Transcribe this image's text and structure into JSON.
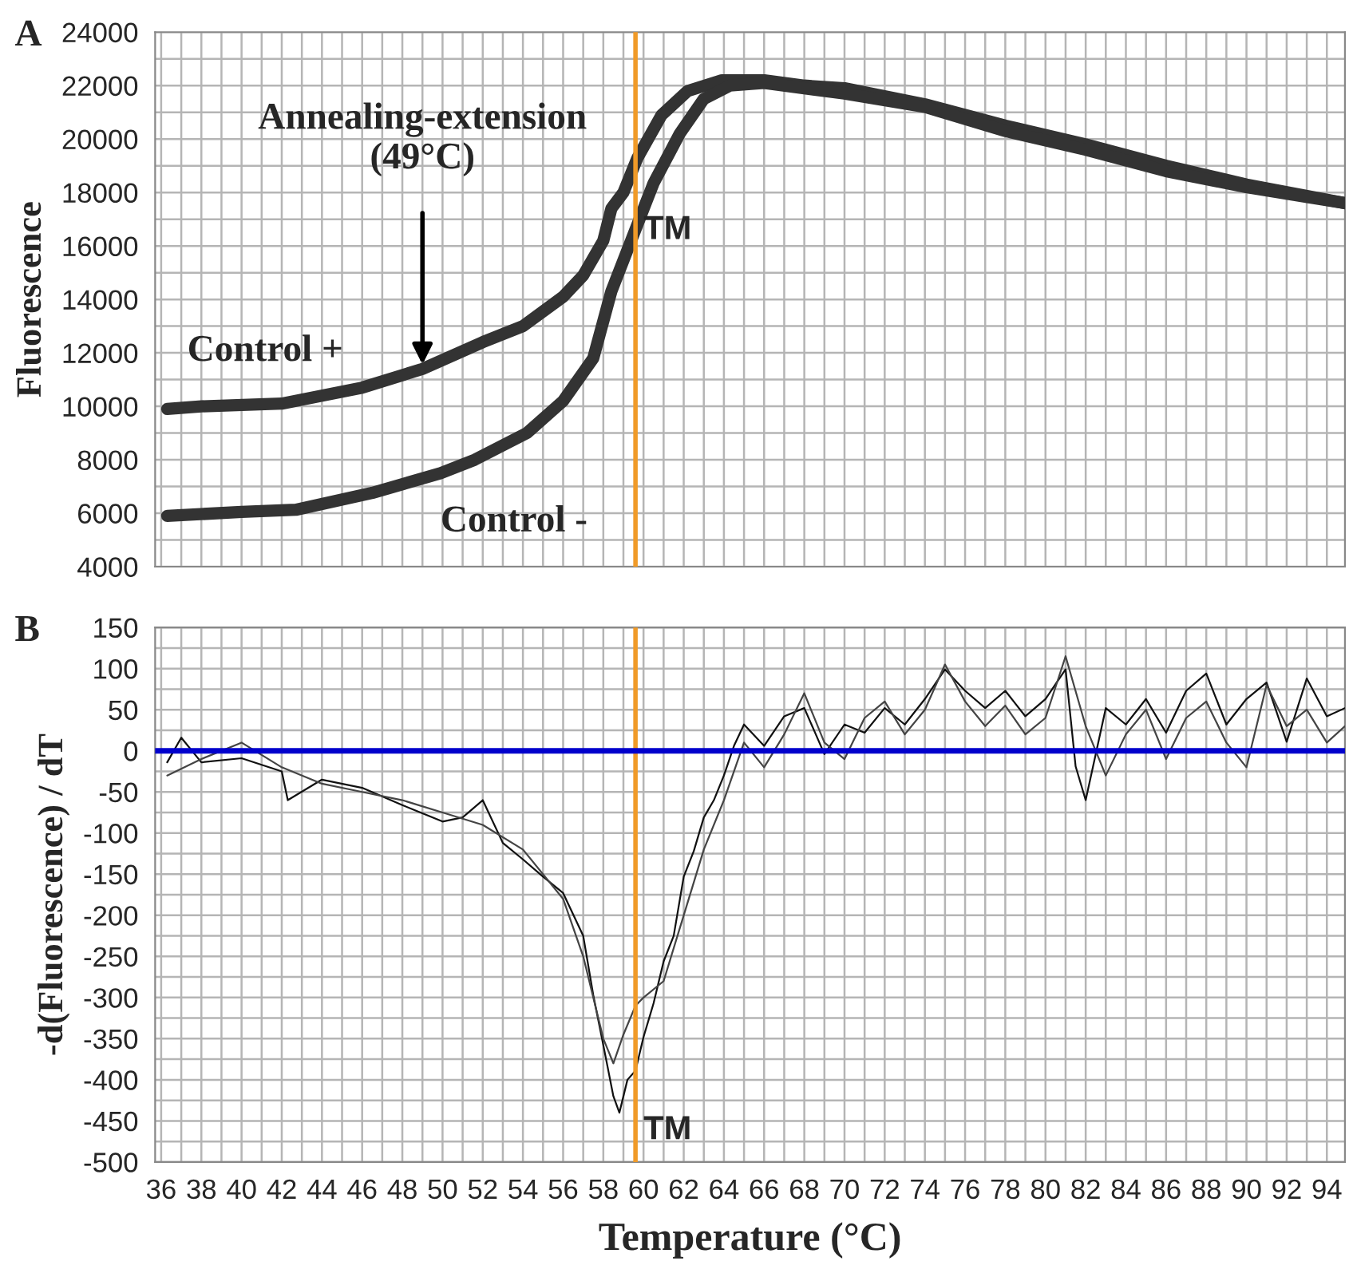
{
  "chart_data": [
    {
      "type": "line",
      "title": "A",
      "ylabel": "Fluorescence",
      "xlim": [
        35.7,
        94.9
      ],
      "xticks": [
        36,
        38,
        40,
        42,
        44,
        46,
        48,
        50,
        52,
        54,
        56,
        58,
        60,
        62,
        64,
        66,
        68,
        70,
        72,
        74,
        76,
        78,
        80,
        82,
        84,
        86,
        88,
        90,
        92,
        94
      ],
      "ylim": [
        4000,
        24000
      ],
      "yticks": [
        4000,
        6000,
        8000,
        10000,
        12000,
        14000,
        16000,
        18000,
        20000,
        22000,
        24000
      ],
      "tick_labels": "y",
      "grid": true,
      "legend": false,
      "series": [
        {
          "name": "Control +",
          "color": "#333333",
          "x": [
            36.3,
            38,
            42,
            46,
            49,
            52,
            54,
            56,
            57,
            58,
            58.4,
            59,
            59.7,
            60.9,
            62.2,
            63.9,
            66,
            68,
            70,
            74,
            78,
            82,
            86,
            90,
            94.9
          ],
          "values": [
            9900,
            10000,
            10100,
            10700,
            11400,
            12400,
            13000,
            14100,
            14900,
            16200,
            17400,
            18000,
            19300,
            20900,
            21800,
            22200,
            22200,
            22000,
            21900,
            21300,
            20500,
            19800,
            19000,
            18300,
            17600
          ]
        },
        {
          "name": "Control -",
          "color": "#333333",
          "x": [
            36.3,
            40,
            42.7,
            46.5,
            49.9,
            51.6,
            54.2,
            56,
            57.5,
            58.4,
            59.2,
            60.5,
            61.8,
            63,
            64.3,
            66,
            70,
            74,
            78,
            82,
            86,
            90,
            94.9
          ],
          "values": [
            5900,
            6050,
            6130,
            6760,
            7500,
            8000,
            9000,
            10200,
            11800,
            14300,
            15850,
            18350,
            20200,
            21500,
            22000,
            22100,
            21700,
            21200,
            20300,
            19600,
            18800,
            18200,
            17600
          ]
        }
      ],
      "ref_lines": [
        {
          "axis": "x",
          "value": 59.6,
          "label": "TM",
          "color": "#f09a28"
        }
      ],
      "annotations": [
        {
          "text": "Annealing-extension\n(49°C)",
          "x": 49,
          "y": 11400
        }
      ]
    },
    {
      "type": "line",
      "title": "B",
      "xlabel": "Temperature (°C)",
      "ylabel": "-d(Fluorescence) / dT",
      "xlim": [
        35.7,
        94.9
      ],
      "xticks": [
        36,
        38,
        40,
        42,
        44,
        46,
        48,
        50,
        52,
        54,
        56,
        58,
        60,
        62,
        64,
        66,
        68,
        70,
        72,
        74,
        76,
        78,
        80,
        82,
        84,
        86,
        88,
        90,
        92,
        94
      ],
      "ylim": [
        -500,
        150
      ],
      "yticks": [
        -500,
        -450,
        -400,
        -350,
        -300,
        -250,
        -200,
        -150,
        -100,
        -50,
        0,
        50,
        100,
        150
      ],
      "grid": true,
      "legend": false,
      "series": [
        {
          "color": "#111111",
          "x": [
            36.3,
            37,
            38,
            40,
            42,
            42.3,
            44,
            46,
            48,
            50,
            51,
            52,
            53,
            54,
            55,
            56,
            57,
            57.5,
            58,
            58.5,
            58.8,
            59.2,
            59.6,
            60,
            60.5,
            61,
            61.5,
            62,
            62.5,
            63,
            63.5,
            64,
            64.5,
            65,
            66,
            67,
            68,
            69,
            70,
            71,
            72,
            73,
            74,
            75,
            76,
            77,
            78,
            79,
            80,
            81,
            81.5,
            82,
            83,
            84,
            85,
            86,
            87,
            88,
            89,
            90,
            91,
            92,
            93,
            94,
            94.9
          ],
          "values": [
            -14,
            16,
            -14,
            -9,
            -25,
            -60,
            -35,
            -45,
            -66,
            -86,
            -81,
            -60,
            -112,
            -132,
            -153,
            -173,
            -225,
            -297,
            -358,
            -420,
            -440,
            -400,
            -389,
            -348,
            -307,
            -256,
            -225,
            -153,
            -122,
            -81,
            -60,
            -30,
            6,
            32,
            6,
            42,
            52,
            -4,
            32,
            22,
            52,
            32,
            63,
            99,
            73,
            52,
            73,
            42,
            63,
            99,
            -19,
            -60,
            52,
            32,
            63,
            22,
            73,
            94,
            32,
            63,
            83,
            11,
            88,
            42,
            52
          ]
        },
        {
          "color": "#444444",
          "x": [
            36.3,
            38,
            40,
            42,
            44,
            46,
            48,
            50,
            52,
            54,
            56,
            57,
            58,
            58.5,
            59,
            59.6,
            60,
            61,
            62,
            63,
            64,
            65,
            66,
            67,
            68,
            69,
            70,
            71,
            72,
            73,
            74,
            75,
            76,
            77,
            78,
            79,
            80,
            81,
            82,
            83,
            84,
            85,
            86,
            87,
            88,
            89,
            90,
            91,
            92,
            93,
            94,
            94.9
          ],
          "values": [
            -30,
            -10,
            10,
            -20,
            -40,
            -50,
            -60,
            -75,
            -90,
            -120,
            -180,
            -250,
            -350,
            -380,
            -345,
            -310,
            -300,
            -280,
            -200,
            -120,
            -60,
            10,
            -20,
            20,
            70,
            10,
            -10,
            40,
            60,
            20,
            50,
            105,
            60,
            30,
            55,
            20,
            40,
            115,
            30,
            -30,
            20,
            50,
            -10,
            40,
            60,
            10,
            -20,
            80,
            30,
            50,
            10,
            30
          ]
        }
      ],
      "ref_lines": [
        {
          "axis": "x",
          "value": 59.6,
          "label": "TM",
          "color": "#f09a28"
        },
        {
          "axis": "y",
          "value": 0,
          "color": "#0000cc"
        }
      ]
    }
  ]
}
